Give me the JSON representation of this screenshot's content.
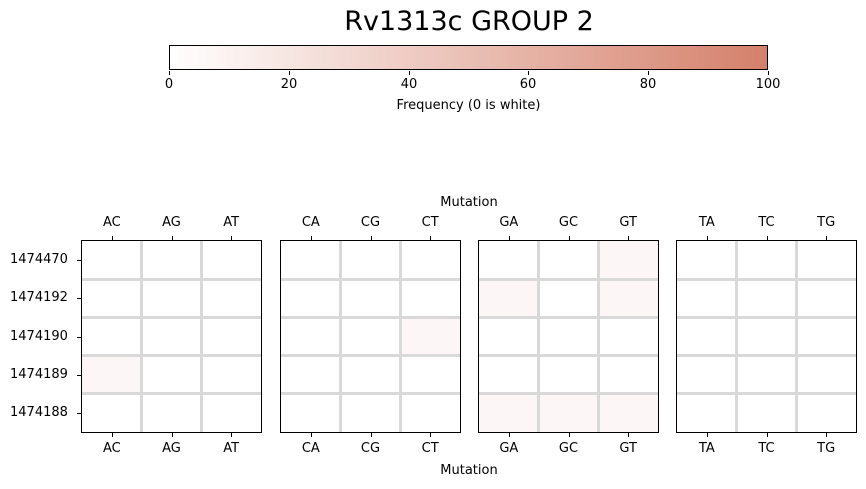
{
  "chart_data": {
    "type": "heatmap",
    "title": "Rv1313c GROUP 2",
    "colorbar": {
      "label": "Frequency (0 is white)",
      "min": 0,
      "max": 100,
      "ticks": [
        "0",
        "20",
        "40",
        "60",
        "80",
        "100"
      ],
      "color_low": "#ffffff",
      "color_high": "#d4806a"
    },
    "xlabel_top": "Mutation",
    "xlabel_bottom": "Mutation",
    "rows": [
      "1474470",
      "1474192",
      "1474190",
      "1474189",
      "1474188"
    ],
    "panels": [
      {
        "columns": [
          "AC",
          "AG",
          "AT"
        ],
        "values": [
          [
            0,
            0,
            0
          ],
          [
            0,
            0,
            0
          ],
          [
            0,
            0,
            0
          ],
          [
            6,
            0,
            0
          ],
          [
            0,
            0,
            0
          ]
        ]
      },
      {
        "columns": [
          "CA",
          "CG",
          "CT"
        ],
        "values": [
          [
            0,
            0,
            0
          ],
          [
            0,
            0,
            0
          ],
          [
            0,
            0,
            6
          ],
          [
            0,
            0,
            0
          ],
          [
            0,
            0,
            0
          ]
        ]
      },
      {
        "columns": [
          "GA",
          "GC",
          "GT"
        ],
        "values": [
          [
            0,
            0,
            6
          ],
          [
            6,
            0,
            6
          ],
          [
            0,
            0,
            0
          ],
          [
            0,
            0,
            0
          ],
          [
            6,
            6,
            6
          ]
        ]
      },
      {
        "columns": [
          "TA",
          "TC",
          "TG"
        ],
        "values": [
          [
            0,
            0,
            0
          ],
          [
            0,
            0,
            0
          ],
          [
            0,
            0,
            0
          ],
          [
            0,
            0,
            0
          ],
          [
            0,
            0,
            0
          ]
        ]
      }
    ],
    "grid": true
  }
}
